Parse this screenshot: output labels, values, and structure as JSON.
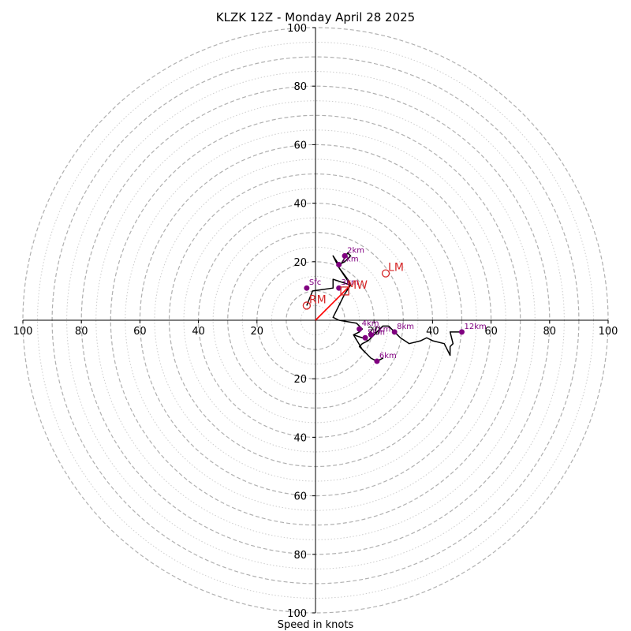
{
  "chart_data": {
    "type": "hodograph",
    "title": "KLZK 12Z - Monday April 28 2025",
    "xlabel": "Speed in knots",
    "units": "knots",
    "xlim": [
      -100,
      100
    ],
    "ylim": [
      -100,
      100
    ],
    "rings": {
      "major": [
        10,
        20,
        30,
        40,
        50,
        60,
        70,
        80,
        90,
        100
      ],
      "minor": [
        5,
        15,
        25,
        35,
        45,
        55,
        65,
        75,
        85,
        95
      ]
    },
    "tick_values": [
      20,
      40,
      60,
      80,
      100
    ],
    "colors": {
      "trace": "#000000",
      "height_markers": "#800080",
      "motion": "#d62728",
      "grid": "#b0b0b0"
    },
    "wind_trace": [
      [
        -3,
        5
      ],
      [
        -1,
        10
      ],
      [
        6,
        11
      ],
      [
        6,
        14
      ],
      [
        12,
        12
      ],
      [
        8,
        18
      ],
      [
        11,
        23
      ],
      [
        12,
        22
      ],
      [
        10,
        20
      ],
      [
        8,
        19
      ],
      [
        6,
        22
      ],
      [
        8,
        18
      ],
      [
        11,
        14
      ],
      [
        12,
        12
      ],
      [
        10,
        9
      ],
      [
        6,
        1
      ],
      [
        8,
        0
      ],
      [
        14,
        -1
      ],
      [
        16,
        -3
      ],
      [
        15,
        -4
      ],
      [
        13,
        -5
      ],
      [
        16,
        -6
      ],
      [
        18,
        -7
      ],
      [
        20,
        -5
      ],
      [
        23,
        -2
      ],
      [
        25,
        -2
      ],
      [
        27,
        -4
      ],
      [
        29,
        -6
      ],
      [
        32,
        -8
      ],
      [
        36,
        -7
      ],
      [
        38,
        -6
      ],
      [
        40,
        -7
      ],
      [
        44,
        -8
      ],
      [
        45,
        -10
      ],
      [
        46,
        -12
      ],
      [
        46,
        -9
      ],
      [
        47,
        -8
      ],
      [
        46,
        -4
      ],
      [
        48,
        -4
      ],
      [
        50,
        -4
      ]
    ],
    "branch_trace": [
      [
        17,
        -11
      ],
      [
        15,
        -9
      ],
      [
        16,
        -8
      ],
      [
        18,
        -7
      ]
    ],
    "branch_trace_2": [
      [
        13,
        -5
      ],
      [
        16,
        -10
      ],
      [
        19,
        -13
      ],
      [
        21,
        -14
      ],
      [
        23,
        -13
      ],
      [
        21,
        -14
      ]
    ],
    "height_markers": [
      {
        "label": "Sfc",
        "u": -3,
        "v": 11
      },
      {
        "label": "1km",
        "u": 8,
        "v": 19
      },
      {
        "label": "2km",
        "u": 10,
        "v": 22
      },
      {
        "label": "3km",
        "u": 8,
        "v": 11
      },
      {
        "label": "4km",
        "u": 15,
        "v": -3
      },
      {
        "label": "5km",
        "u": 17,
        "v": -6
      },
      {
        "label": "6km",
        "u": 21,
        "v": -14
      },
      {
        "label": "7km",
        "u": 19,
        "v": -5
      },
      {
        "label": "8km",
        "u": 27,
        "v": -4
      },
      {
        "label": "12km",
        "u": 50,
        "v": -4
      }
    ],
    "storm_motion": [
      {
        "label": "RM",
        "u": -3,
        "v": 5,
        "marker": "circle"
      },
      {
        "label": "LM",
        "u": 24,
        "v": 16,
        "marker": "circle"
      },
      {
        "label": "MW",
        "u": 10,
        "v": 10,
        "marker": "square"
      }
    ],
    "shear_vector": {
      "from": [
        0,
        0
      ],
      "to": [
        12,
        12
      ]
    }
  }
}
